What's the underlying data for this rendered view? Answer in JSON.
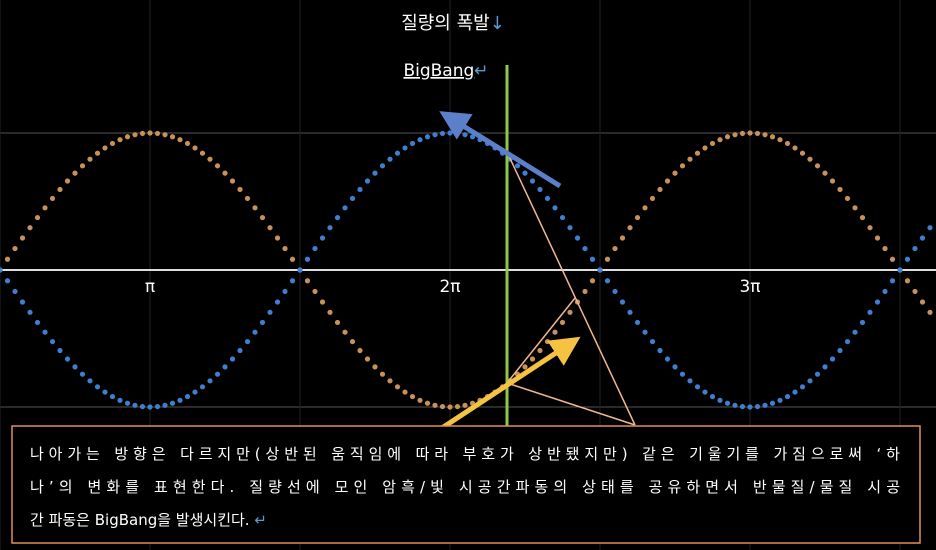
{
  "header": {
    "title": "질량의 폭발",
    "title_mark": "↓",
    "subtitle": "BigBang",
    "subtitle_mark": "↵"
  },
  "axis": {
    "labels": [
      "π",
      "2π",
      "3π"
    ]
  },
  "caption": {
    "lines": [
      "나아가는 방향은 다르지만(상반된 움직임에 따라 부호가 상반됐지만) 같은 기울기를 가짐으로써 ‘하",
      "나’의 변화를 표현한다. 질량선에 모인 암흑/빛 시공간파동의 상태를 공유하면서 반물질/물질 시공",
      "간 파동은 BigBang을 발생시킨다. "
    ],
    "mark": "↵"
  }
}
